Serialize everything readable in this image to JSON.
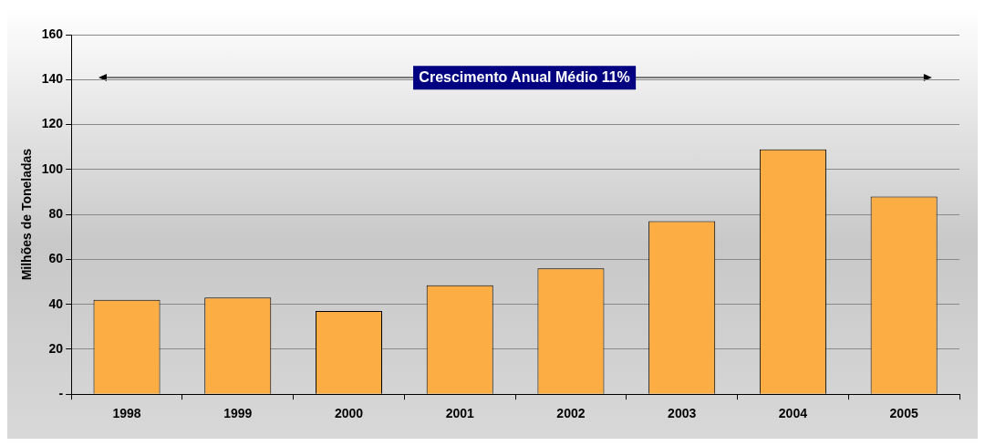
{
  "chart_data": {
    "type": "bar",
    "ylabel": "Milhões de Toneladas",
    "categories": [
      "1998",
      "1999",
      "2000",
      "2001",
      "2002",
      "2003",
      "2004",
      "2005"
    ],
    "values": [
      42,
      43,
      37,
      48.5,
      56,
      77,
      109,
      88
    ],
    "color": "#fcae45",
    "ylim": [
      0,
      160
    ],
    "yticks": [
      {
        "value": 0,
        "label": "-"
      },
      20,
      40,
      60,
      80,
      100,
      120,
      140,
      160
    ],
    "grid": "y",
    "legend": false,
    "annotations": [
      "Crescimento Anual Médio 11%"
    ]
  }
}
